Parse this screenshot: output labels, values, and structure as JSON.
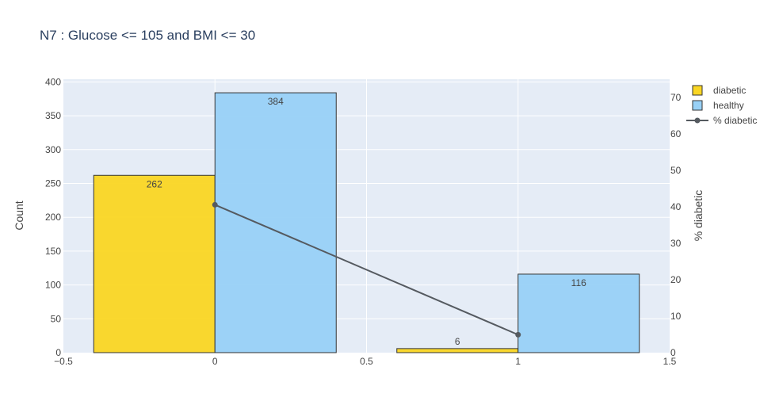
{
  "chart_data": {
    "type": "bar",
    "title": "N7 : Glucose <= 105 and BMI <= 30",
    "xlabel": "",
    "ylabel": "Count",
    "y2label": "% diabetic",
    "xlim": [
      -0.5,
      1.5
    ],
    "ylim": [
      0,
      400
    ],
    "y2lim": [
      0,
      72
    ],
    "xticks": [
      "−0.5",
      "0",
      "0.5",
      "1",
      "1.5"
    ],
    "xtick_values": [
      -0.5,
      0,
      0.5,
      1,
      1.5
    ],
    "yticks": [
      "0",
      "50",
      "100",
      "150",
      "200",
      "250",
      "300",
      "350",
      "400"
    ],
    "ytick_values": [
      0,
      50,
      100,
      150,
      200,
      250,
      300,
      350,
      400
    ],
    "y2ticks": [
      "0",
      "10",
      "20",
      "30",
      "40",
      "50",
      "60",
      "70"
    ],
    "y2tick_values": [
      0,
      10,
      20,
      30,
      40,
      50,
      60,
      70
    ],
    "grid": true,
    "legend_position": "top-right",
    "bar_width": 0.4,
    "series": [
      {
        "name": "diabetic",
        "kind": "bar",
        "color": "#fad623",
        "x_start": [
          -0.4,
          0.6
        ],
        "values": [
          262,
          6
        ],
        "labels": [
          "262",
          "6"
        ]
      },
      {
        "name": "healthy",
        "kind": "bar",
        "color": "#98d1f7",
        "x_start": [
          0,
          1
        ],
        "values": [
          384,
          116
        ],
        "labels": [
          "384",
          "116"
        ]
      },
      {
        "name": "% diabetic",
        "kind": "line",
        "axis": "y2",
        "color": "#555a60",
        "x": [
          0,
          1
        ],
        "values": [
          40.56,
          4.92
        ]
      }
    ],
    "colors": {
      "plot_bg": "#e5ecf6",
      "grid": "#ffffff",
      "text": "#444444",
      "title": "#2a3f5f",
      "bar_edge": "#333333"
    }
  }
}
